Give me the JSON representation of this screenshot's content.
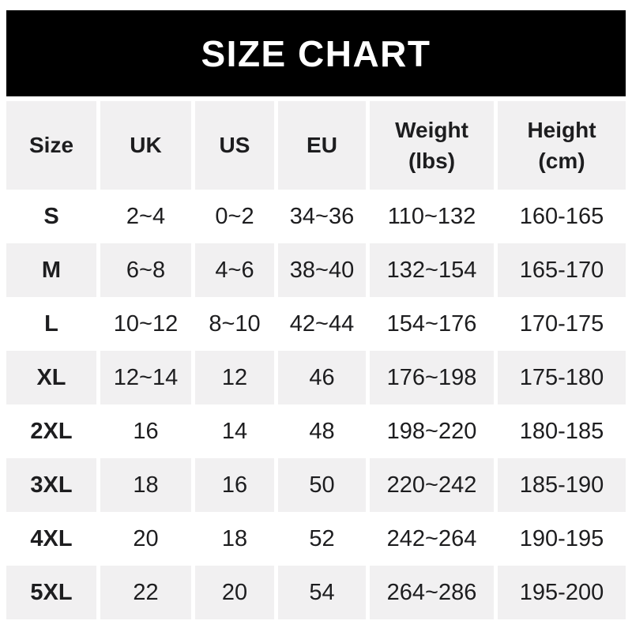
{
  "banner": {
    "title": "SIZE CHART"
  },
  "table": {
    "header": {
      "size": "Size",
      "uk": "UK",
      "us": "US",
      "eu": "EU",
      "weight": "Weight\n(lbs)",
      "height": "Height\n(cm)"
    },
    "rows": [
      {
        "size": "S",
        "uk": "2~4",
        "us": "0~2",
        "eu": "34~36",
        "weight": "110~132",
        "height": "160-165"
      },
      {
        "size": "M",
        "uk": "6~8",
        "us": "4~6",
        "eu": "38~40",
        "weight": "132~154",
        "height": "165-170"
      },
      {
        "size": "L",
        "uk": "10~12",
        "us": "8~10",
        "eu": "42~44",
        "weight": "154~176",
        "height": "170-175"
      },
      {
        "size": "XL",
        "uk": "12~14",
        "us": "12",
        "eu": "46",
        "weight": "176~198",
        "height": "175-180"
      },
      {
        "size": "2XL",
        "uk": "16",
        "us": "14",
        "eu": "48",
        "weight": "198~220",
        "height": "180-185"
      },
      {
        "size": "3XL",
        "uk": "18",
        "us": "16",
        "eu": "50",
        "weight": "220~242",
        "height": "185-190"
      },
      {
        "size": "4XL",
        "uk": "20",
        "us": "18",
        "eu": "52",
        "weight": "242~264",
        "height": "190-195"
      },
      {
        "size": "5XL",
        "uk": "22",
        "us": "20",
        "eu": "54",
        "weight": "264~286",
        "height": "195-200"
      }
    ]
  },
  "chart_data": {
    "type": "table",
    "title": "SIZE CHART",
    "columns": [
      "Size",
      "UK",
      "US",
      "EU",
      "Weight (lbs)",
      "Height (cm)"
    ],
    "rows": [
      [
        "S",
        "2~4",
        "0~2",
        "34~36",
        "110~132",
        "160-165"
      ],
      [
        "M",
        "6~8",
        "4~6",
        "38~40",
        "132~154",
        "165-170"
      ],
      [
        "L",
        "10~12",
        "8~10",
        "42~44",
        "154~176",
        "170-175"
      ],
      [
        "XL",
        "12~14",
        "12",
        "46",
        "176~198",
        "175-180"
      ],
      [
        "2XL",
        "16",
        "14",
        "48",
        "198~220",
        "180-185"
      ],
      [
        "3XL",
        "18",
        "16",
        "50",
        "220~242",
        "185-190"
      ],
      [
        "4XL",
        "20",
        "18",
        "52",
        "242~264",
        "190-195"
      ],
      [
        "5XL",
        "22",
        "20",
        "54",
        "264~286",
        "195-200"
      ]
    ],
    "layout": {
      "header_row": true,
      "alternating_row_shading": true,
      "grid": "column-gaps-only"
    }
  },
  "colors": {
    "page_bg": "#ffffff",
    "banner_bg": "#000000",
    "banner_text": "#ffffff",
    "row_alt_bg": "#f1f0f1",
    "text_color": "#1d1d1f"
  }
}
